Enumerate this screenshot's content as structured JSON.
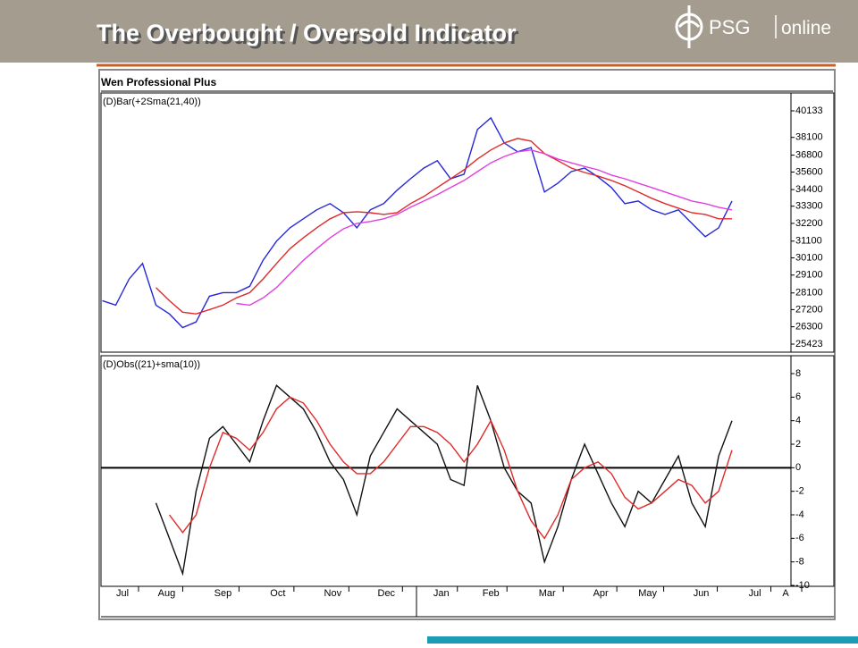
{
  "header": {
    "title": "The Overbought / Oversold Indicator",
    "logo_brand": "PSG",
    "logo_text": "online"
  },
  "app_title": "Wen Professional Plus",
  "chart_data": [
    {
      "type": "line",
      "title": "(D)Bar(+2Sma(21,40))",
      "log_scale": true,
      "x": [
        0,
        1,
        2,
        3,
        4,
        5,
        6,
        7,
        8,
        9,
        10,
        11,
        12,
        13,
        14,
        15,
        16,
        17,
        18,
        19,
        20,
        21,
        22,
        23,
        24,
        25,
        26,
        27,
        28,
        29,
        30,
        31,
        32,
        33,
        34,
        35,
        36,
        37,
        38,
        39,
        40,
        41,
        42,
        43,
        44,
        45,
        46,
        47
      ],
      "xlim": [
        -0.1,
        51.4
      ],
      "ylim": [
        25423,
        40133
      ],
      "yticks": [
        25423,
        26300,
        27200,
        28100,
        29100,
        30100,
        31100,
        32200,
        33300,
        34400,
        35600,
        36800,
        38100,
        40133
      ],
      "series": [
        {
          "color": "#2727d8",
          "values": [
            27680,
            27440,
            28880,
            29770,
            27440,
            26970,
            26260,
            26550,
            27920,
            28120,
            28120,
            28470,
            29960,
            31100,
            31920,
            32490,
            33060,
            33470,
            32880,
            31920,
            33060,
            33470,
            34360,
            35140,
            35880,
            36400,
            35140,
            35450,
            38690,
            39580,
            37690,
            37040,
            37350,
            34240,
            34840,
            35630,
            35880,
            35260,
            34540,
            33470,
            33640,
            33060,
            32770,
            33060,
            32200,
            31370,
            31920,
            33640
          ]
        },
        {
          "color": "#e02a2a",
          "values": [
            null,
            null,
            null,
            null,
            28400,
            27680,
            27060,
            26970,
            27200,
            27440,
            27830,
            28120,
            28880,
            29770,
            30640,
            31300,
            31920,
            32490,
            32880,
            32940,
            32880,
            32770,
            32880,
            33470,
            33940,
            34540,
            35140,
            35760,
            36520,
            37170,
            37690,
            38020,
            37820,
            36910,
            36400,
            35880,
            35570,
            35330,
            35020,
            34660,
            34240,
            33820,
            33470,
            33170,
            32880,
            32770,
            32490,
            32490
          ]
        },
        {
          "color": "#e040e0",
          "values": [
            null,
            null,
            null,
            null,
            null,
            null,
            null,
            null,
            null,
            null,
            27530,
            27440,
            27830,
            28400,
            29170,
            29950,
            30640,
            31300,
            31860,
            32200,
            32320,
            32490,
            32770,
            33230,
            33640,
            34060,
            34540,
            35020,
            35630,
            36250,
            36700,
            37040,
            37170,
            36910,
            36520,
            36250,
            35990,
            35760,
            35390,
            35140,
            34840,
            34540,
            34240,
            33940,
            33640,
            33470,
            33230,
            33060
          ]
        }
      ]
    },
    {
      "type": "line",
      "title": "(D)Obs((21)+sma(10))",
      "x": [
        0,
        1,
        2,
        3,
        4,
        5,
        6,
        7,
        8,
        9,
        10,
        11,
        12,
        13,
        14,
        15,
        16,
        17,
        18,
        19,
        20,
        21,
        22,
        23,
        24,
        25,
        26,
        27,
        28,
        29,
        30,
        31,
        32,
        33,
        34,
        35,
        36,
        37,
        38,
        39,
        40,
        41,
        42,
        43,
        44,
        45,
        46,
        47
      ],
      "xlim": [
        -0.1,
        51.4
      ],
      "xticks": [
        {
          "value": 1.5,
          "label": "Jul"
        },
        {
          "value": 4.8,
          "label": "Aug"
        },
        {
          "value": 9.0,
          "label": "Sep"
        },
        {
          "value": 13.1,
          "label": "Oct"
        },
        {
          "value": 17.2,
          "label": "Nov"
        },
        {
          "value": 21.2,
          "label": "Dec"
        },
        {
          "value": 25.3,
          "label": "Jan"
        },
        {
          "value": 29.0,
          "label": "Feb"
        },
        {
          "value": 33.2,
          "label": "Mar"
        },
        {
          "value": 37.2,
          "label": "Apr"
        },
        {
          "value": 40.7,
          "label": "May"
        },
        {
          "value": 44.7,
          "label": "Jun"
        },
        {
          "value": 48.7,
          "label": "Jul"
        },
        {
          "value": 51.0,
          "label": "A"
        }
      ],
      "ylim": [
        -10,
        8
      ],
      "yticks": [
        -10,
        -8,
        -6,
        -4,
        -2,
        0,
        2,
        4,
        6,
        8
      ],
      "hline": 0,
      "series": [
        {
          "color": "#111111",
          "values": [
            null,
            null,
            null,
            null,
            -3,
            -6,
            -9,
            -2,
            2.5,
            3.5,
            2,
            0.5,
            4,
            7,
            6,
            5,
            3,
            0.5,
            -1,
            -4,
            1,
            3,
            5,
            4,
            3,
            2,
            -1,
            -1.5,
            7,
            4,
            0,
            -2,
            -3,
            -8,
            -5,
            -1,
            2,
            -0.5,
            -3,
            -5,
            -2,
            -3,
            -1,
            1,
            -3,
            -5,
            1,
            4
          ]
        },
        {
          "color": "#e02a2a",
          "values": [
            null,
            null,
            null,
            null,
            null,
            -4,
            -5.5,
            -4,
            0,
            3,
            2.5,
            1.5,
            3,
            5,
            6,
            5.5,
            4,
            2,
            0.5,
            -0.5,
            -0.5,
            0.5,
            2,
            3.5,
            3.5,
            3,
            2,
            0.5,
            2,
            4,
            1.5,
            -2,
            -4.5,
            -6,
            -4,
            -1,
            0,
            0.5,
            -0.5,
            -2.5,
            -3.5,
            -3,
            -2,
            -1,
            -1.5,
            -3,
            -2,
            1.5
          ]
        }
      ]
    }
  ]
}
